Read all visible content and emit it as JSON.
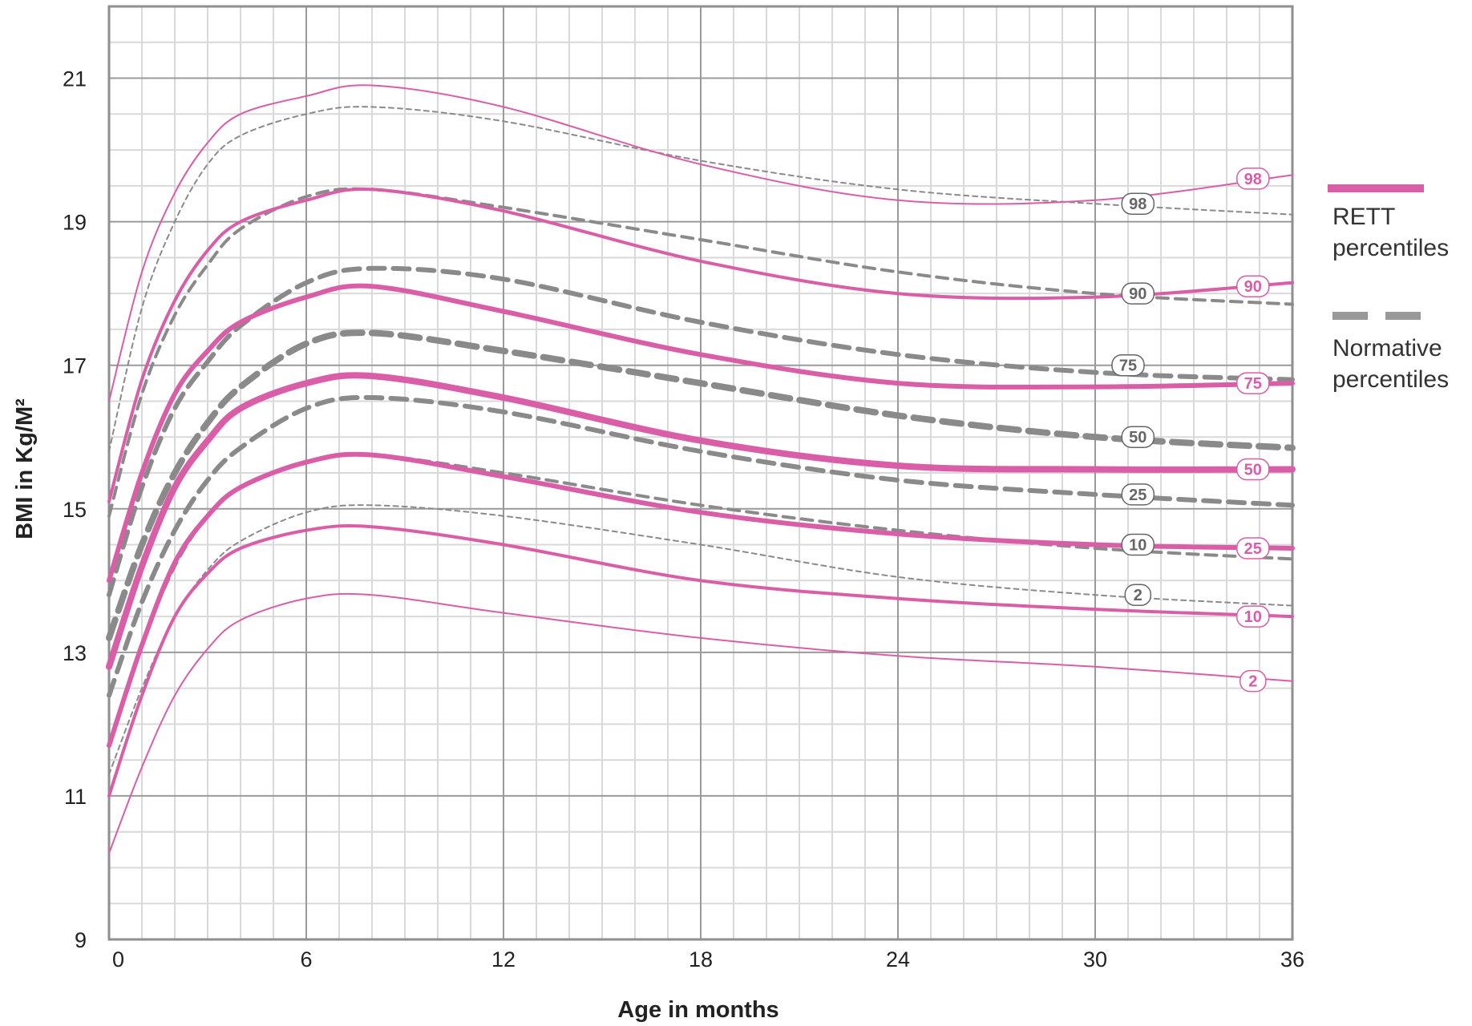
{
  "chart_data": {
    "type": "line",
    "xlabel": "Age in months",
    "ylabel": "BMI in Kg/M²",
    "xlim": [
      0,
      36
    ],
    "ylim": [
      9,
      22
    ],
    "x_ticks": [
      0,
      6,
      12,
      18,
      24,
      30,
      36
    ],
    "y_ticks": [
      9,
      11,
      13,
      15,
      17,
      19,
      21
    ],
    "y_tick_labels": [
      "9",
      "11",
      "13",
      "15",
      "17",
      "19",
      "21"
    ],
    "x_tick_labels": [
      "0",
      "6",
      "12",
      "18",
      "24",
      "30",
      "36"
    ],
    "grid": true,
    "legend_position": "right",
    "legend": [
      {
        "label_line1": "RETT",
        "label_line2": "percentiles",
        "style": "solid",
        "color": "#d95da7"
      },
      {
        "label_line1": "Normative",
        "label_line2": "percentiles",
        "style": "dashed",
        "color": "#999999"
      }
    ],
    "x": [
      0,
      1,
      2,
      3,
      4,
      6,
      8,
      12,
      18,
      24,
      30,
      36
    ],
    "series": [
      {
        "group": "RETT",
        "percentile": "98",
        "values": [
          16.5,
          18.3,
          19.4,
          20.1,
          20.5,
          20.75,
          20.9,
          20.6,
          19.8,
          19.3,
          19.3,
          19.65
        ]
      },
      {
        "group": "RETT",
        "percentile": "90",
        "values": [
          15.1,
          16.8,
          17.9,
          18.6,
          19.0,
          19.3,
          19.45,
          19.15,
          18.45,
          18.0,
          17.95,
          18.15
        ]
      },
      {
        "group": "RETT",
        "percentile": "75",
        "values": [
          14.0,
          15.5,
          16.6,
          17.2,
          17.6,
          17.95,
          18.1,
          17.75,
          17.15,
          16.75,
          16.7,
          16.75
        ]
      },
      {
        "group": "RETT",
        "percentile": "50",
        "values": [
          12.8,
          14.2,
          15.3,
          15.95,
          16.4,
          16.75,
          16.85,
          16.55,
          15.95,
          15.6,
          15.55,
          15.55
        ]
      },
      {
        "group": "RETT",
        "percentile": "25",
        "values": [
          11.7,
          13.1,
          14.25,
          14.9,
          15.3,
          15.65,
          15.75,
          15.45,
          14.95,
          14.65,
          14.5,
          14.45
        ]
      },
      {
        "group": "RETT",
        "percentile": "10",
        "values": [
          11.0,
          12.4,
          13.5,
          14.1,
          14.45,
          14.7,
          14.75,
          14.5,
          14.0,
          13.75,
          13.6,
          13.5
        ]
      },
      {
        "group": "RETT",
        "percentile": "2",
        "values": [
          10.2,
          11.4,
          12.4,
          13.05,
          13.45,
          13.75,
          13.8,
          13.55,
          13.2,
          12.95,
          12.8,
          12.6
        ]
      },
      {
        "group": "Normative",
        "percentile": "98",
        "values": [
          15.8,
          17.8,
          19.0,
          19.8,
          20.2,
          20.5,
          20.6,
          20.4,
          19.85,
          19.45,
          19.25,
          19.1
        ]
      },
      {
        "group": "Normative",
        "percentile": "90",
        "values": [
          14.9,
          16.6,
          17.7,
          18.4,
          18.9,
          19.35,
          19.45,
          19.2,
          18.75,
          18.3,
          18.0,
          17.85
        ]
      },
      {
        "group": "Normative",
        "percentile": "75",
        "values": [
          13.8,
          15.3,
          16.4,
          17.05,
          17.55,
          18.15,
          18.35,
          18.2,
          17.6,
          17.15,
          16.9,
          16.8
        ]
      },
      {
        "group": "Normative",
        "percentile": "50",
        "values": [
          13.2,
          14.5,
          15.5,
          16.2,
          16.7,
          17.3,
          17.45,
          17.2,
          16.75,
          16.3,
          16.0,
          15.85
        ]
      },
      {
        "group": "Normative",
        "percentile": "25",
        "values": [
          12.4,
          13.7,
          14.7,
          15.4,
          15.85,
          16.4,
          16.55,
          16.35,
          15.8,
          15.4,
          15.2,
          15.05
        ]
      },
      {
        "group": "Normative",
        "percentile": "10",
        "values": [
          11.7,
          13.1,
          14.2,
          14.9,
          15.3,
          15.65,
          15.75,
          15.5,
          15.05,
          14.7,
          14.45,
          14.3
        ]
      },
      {
        "group": "Normative",
        "percentile": "2",
        "values": [
          11.3,
          12.5,
          13.5,
          14.15,
          14.55,
          14.95,
          15.05,
          14.9,
          14.5,
          14.05,
          13.8,
          13.65
        ]
      }
    ],
    "rett_labels": [
      {
        "text": "98",
        "x": 34.8,
        "y": 19.6
      },
      {
        "text": "90",
        "x": 34.8,
        "y": 18.1
      },
      {
        "text": "75",
        "x": 34.8,
        "y": 16.75
      },
      {
        "text": "50",
        "x": 34.8,
        "y": 15.55
      },
      {
        "text": "25",
        "x": 34.8,
        "y": 14.45
      },
      {
        "text": "10",
        "x": 34.8,
        "y": 13.5
      },
      {
        "text": "2",
        "x": 34.8,
        "y": 12.6
      }
    ],
    "normative_labels": [
      {
        "text": "98",
        "x": 31.3,
        "y": 19.25
      },
      {
        "text": "90",
        "x": 31.3,
        "y": 18.0
      },
      {
        "text": "75",
        "x": 31.0,
        "y": 17.0
      },
      {
        "text": "50",
        "x": 31.3,
        "y": 16.0
      },
      {
        "text": "25",
        "x": 31.3,
        "y": 15.2
      },
      {
        "text": "10",
        "x": 31.3,
        "y": 14.5
      },
      {
        "text": "2",
        "x": 31.3,
        "y": 13.8
      }
    ],
    "colors": {
      "rett": "#d95da7",
      "normative": "#8a8a8a",
      "normative_light": "#c2c2c2",
      "grid_major": "#9a9a9a",
      "grid_minor": "#d9d9d9"
    }
  }
}
